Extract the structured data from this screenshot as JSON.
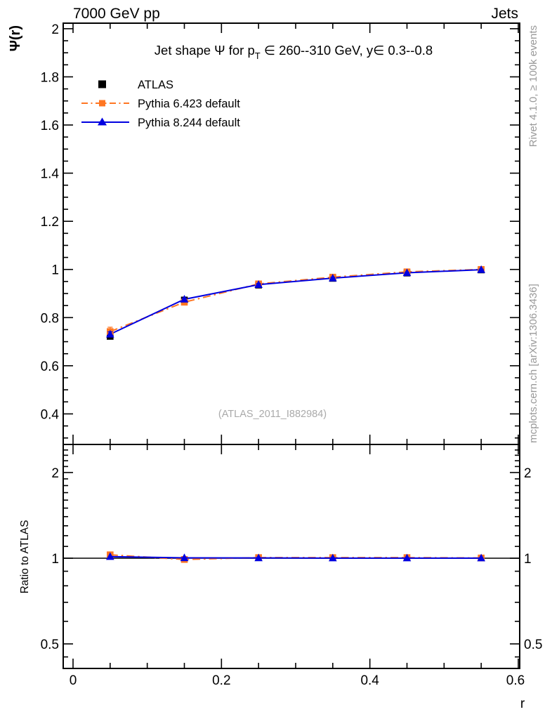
{
  "header": {
    "beam": "7000 GeV pp",
    "process": "Jets"
  },
  "side_notes": {
    "right_top": "Rivet 4.1.0, ≥ 100k events",
    "right_bottom": "mcplots.cern.ch [arXiv:1306.3436]"
  },
  "watermark": "(ATLAS_2011_I882984)",
  "colors": {
    "frame": "#000000",
    "gray_note": "#999999",
    "watermark_gray": "#aaaaaa"
  },
  "chart_data": {
    "type": "line",
    "title_parts": {
      "pre": "Jet shape Ψ for p",
      "sub": "T",
      "post": " ∈ 260--310 GeV, y∈ 0.3--0.8"
    },
    "xlabel": "r",
    "ylabel": "Ψ(r)",
    "ratio_label": "Ratio to ATLAS",
    "legend_position": "top-left",
    "grid": false,
    "x_axis": {
      "range": [
        -0.013,
        0.602
      ],
      "ticks": [
        0,
        0.2,
        0.4,
        0.6
      ],
      "tick_labels": [
        "0",
        "0.2",
        "0.4",
        "0.6"
      ],
      "minor_step": 0.05
    },
    "y_axis_main": {
      "range": [
        0.273,
        2.023
      ],
      "ticks": [
        0.4,
        0.6,
        0.8,
        1.0,
        1.2,
        1.4,
        1.6,
        1.8,
        2.0
      ],
      "tick_labels": [
        "0.4",
        "0.6",
        "0.8",
        "1",
        "1.2",
        "1.4",
        "1.6",
        "1.8",
        "2"
      ],
      "minor_step": 0.05
    },
    "y_axis_ratio": {
      "scale": "log",
      "range": [
        0.41,
        2.51
      ],
      "ticks": [
        0.5,
        1,
        2
      ],
      "tick_labels": [
        "0.5",
        "1",
        "2"
      ],
      "minor_ticks": [
        0.45,
        0.6,
        0.7,
        0.8,
        0.9,
        1.1,
        1.2,
        1.3,
        1.4,
        1.5,
        1.6,
        1.7,
        1.8,
        1.9,
        2.1,
        2.2,
        2.3,
        2.4,
        2.5
      ]
    },
    "x": [
      0.05,
      0.15,
      0.25,
      0.35,
      0.45,
      0.55
    ],
    "series": [
      {
        "name": "ATLAS",
        "color": "#000000",
        "marker": "square",
        "line": "none",
        "values": [
          0.722,
          0.873,
          0.935,
          0.963,
          0.985,
          0.998
        ],
        "yerr": [
          0.008,
          0.005,
          0.004,
          0.003,
          0.003,
          0.002
        ]
      },
      {
        "name": "Pythia 6.423 default",
        "color": "#ff7622",
        "marker": "square",
        "line": "dashdot",
        "values": [
          0.742,
          0.864,
          0.94,
          0.968,
          0.99,
          1.0
        ],
        "yerr": [
          0.018,
          0.007,
          0.005,
          0.004,
          0.003,
          0.002
        ],
        "ratio": [
          1.028,
          0.99,
          1.005,
          1.005,
          1.005,
          1.002
        ]
      },
      {
        "name": "Pythia 8.244 default",
        "color": "#0000e0",
        "marker": "triangle",
        "line": "solid",
        "values": [
          0.731,
          0.876,
          0.937,
          0.964,
          0.986,
          0.999
        ],
        "yerr": [
          0.01,
          0.005,
          0.004,
          0.003,
          0.002,
          0.002
        ],
        "ratio": [
          1.013,
          1.003,
          1.002,
          1.001,
          1.001,
          1.001
        ]
      }
    ],
    "reference_line": 1
  }
}
